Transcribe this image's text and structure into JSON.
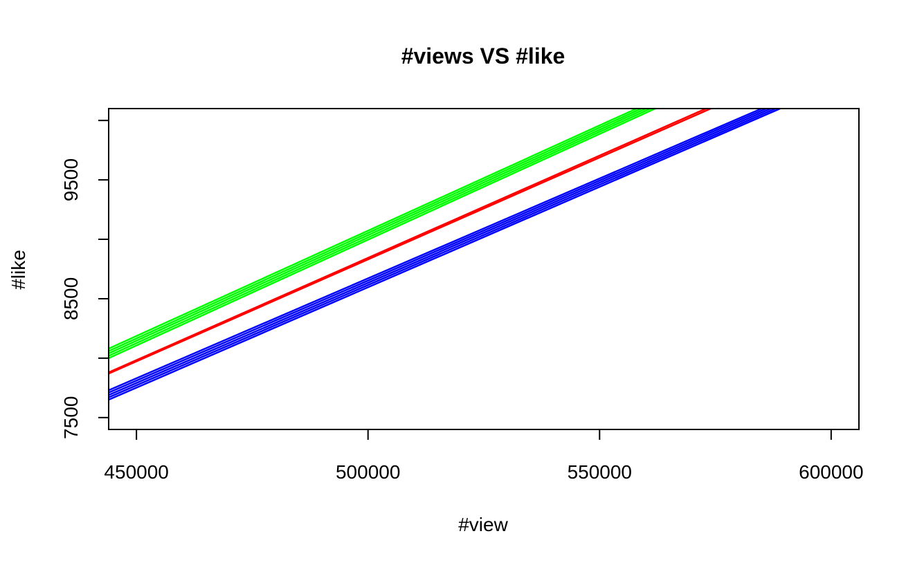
{
  "chart_data": {
    "type": "line",
    "title": "#views VS #like",
    "xlabel": "#view",
    "ylabel": "#like",
    "xlim": [
      444000,
      606000
    ],
    "ylim": [
      7400,
      10100
    ],
    "xticks": [
      450000,
      500000,
      550000,
      600000
    ],
    "xtick_labels": [
      "450000",
      "500000",
      "550000",
      "600000"
    ],
    "yticks": [
      7500,
      8000,
      8500,
      9000,
      9500,
      10000
    ],
    "ytick_labels": [
      "7500",
      "",
      "8500",
      "",
      "9500",
      ""
    ],
    "grid": false,
    "series": [
      {
        "color": "#00ff00",
        "lines": [
          {
            "x": [
              444000,
              562000
            ],
            "y": [
              8000,
              10100
            ]
          },
          {
            "x": [
              444000,
              561000
            ],
            "y": [
              8020,
              10100
            ]
          },
          {
            "x": [
              444000,
              560000
            ],
            "y": [
              8040,
              10100
            ]
          },
          {
            "x": [
              444000,
              559000
            ],
            "y": [
              8060,
              10100
            ]
          },
          {
            "x": [
              444000,
              558000
            ],
            "y": [
              8080,
              10100
            ]
          }
        ]
      },
      {
        "color": "#ff0000",
        "lines": [
          {
            "x": [
              444000,
              573000
            ],
            "y": [
              7880,
              10100
            ]
          },
          {
            "x": [
              444000,
              574000
            ],
            "y": [
              7870,
              10100
            ]
          }
        ]
      },
      {
        "color": "#0000ff",
        "lines": [
          {
            "x": [
              444000,
              589000
            ],
            "y": [
              7650,
              10100
            ]
          },
          {
            "x": [
              444000,
              588000
            ],
            "y": [
              7670,
              10100
            ]
          },
          {
            "x": [
              444000,
              587000
            ],
            "y": [
              7690,
              10100
            ]
          },
          {
            "x": [
              444000,
              586000
            ],
            "y": [
              7710,
              10100
            ]
          },
          {
            "x": [
              444000,
              585000
            ],
            "y": [
              7730,
              10100
            ]
          }
        ]
      }
    ]
  }
}
